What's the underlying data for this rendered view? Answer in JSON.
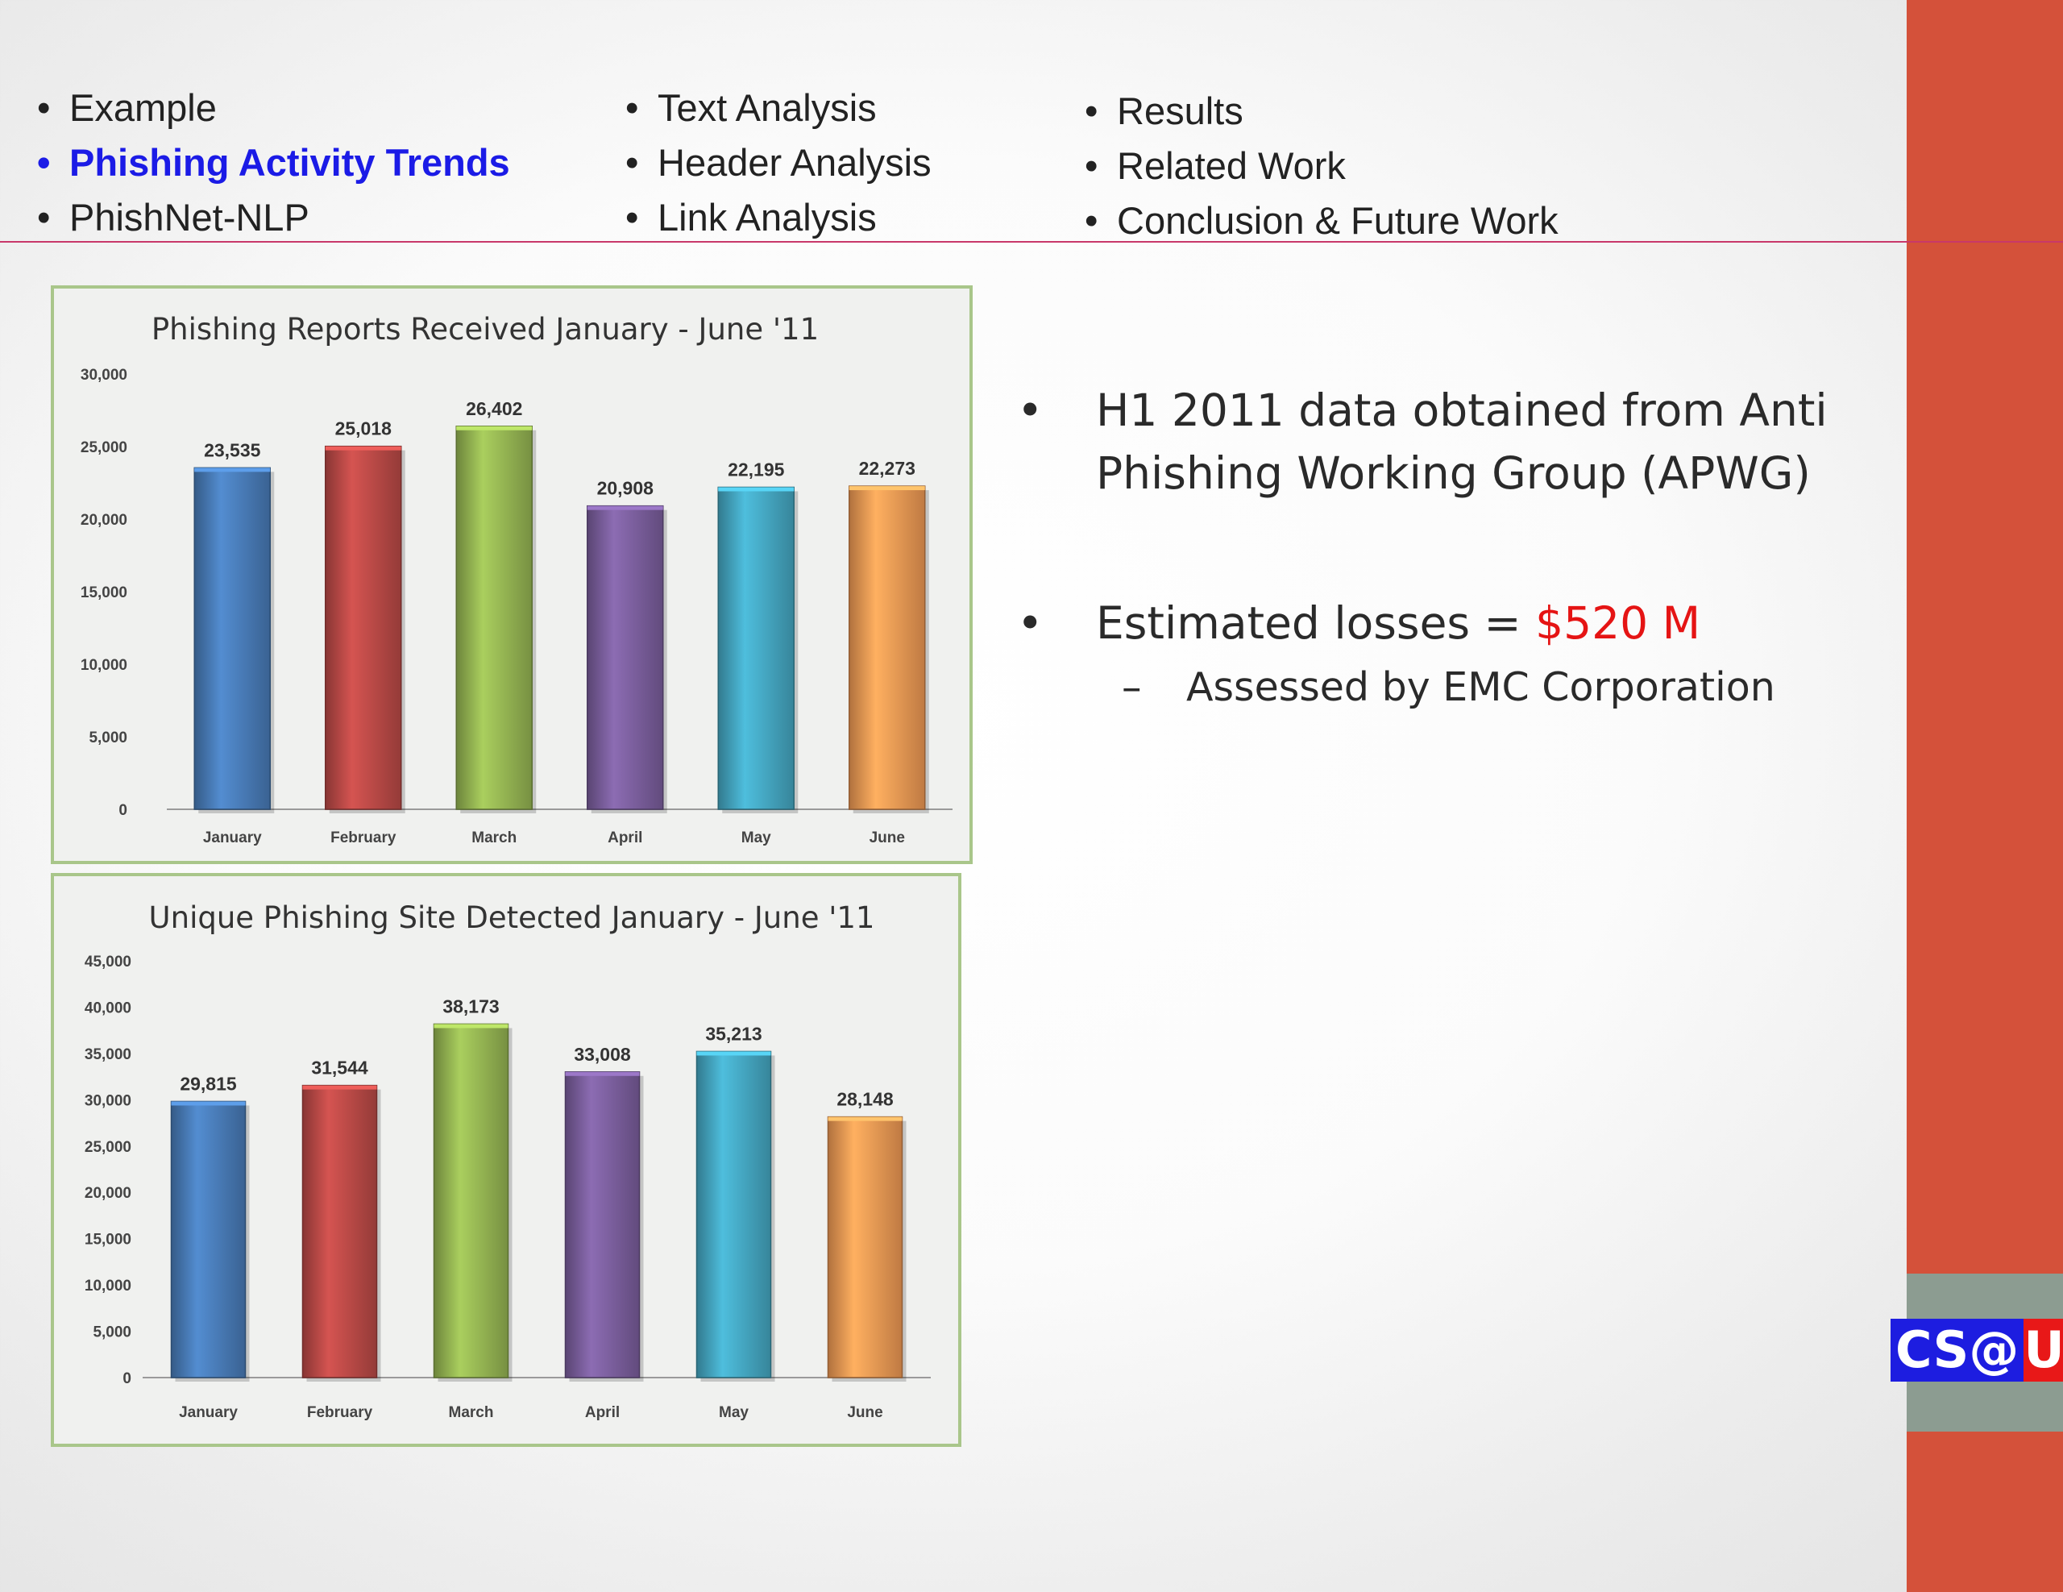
{
  "nav": {
    "col1": [
      {
        "label": "Example",
        "active": false
      },
      {
        "label": "Phishing Activity Trends",
        "active": true
      },
      {
        "label": "PhishNet-NLP",
        "active": false
      }
    ],
    "col2": [
      {
        "label": "Text Analysis"
      },
      {
        "label": "Header Analysis"
      },
      {
        "label": "Link Analysis"
      }
    ],
    "col3": [
      {
        "label": "Results"
      },
      {
        "label": "Related Work"
      },
      {
        "label": "Conclusion & Future Work"
      }
    ]
  },
  "bullets": {
    "item1": "H1 2011 data obtained from Anti Phishing Working Group (APWG)",
    "item2_prefix": "Estimated losses = ",
    "item2_value": "$520 M",
    "item2_sub": "Assessed by EMC Corporation"
  },
  "logo": {
    "cs": "CS",
    "at": "@",
    "uh": "UH"
  },
  "colors": {
    "side_bar": "#d4513a",
    "active_nav": "#1b1be6",
    "highlight": "#e51414"
  },
  "chart_data": [
    {
      "type": "bar",
      "title": "Phishing Reports Received January - June '11",
      "categories": [
        "January",
        "February",
        "March",
        "April",
        "May",
        "June"
      ],
      "values": [
        23535,
        25018,
        26402,
        20908,
        22195,
        22273
      ],
      "value_labels": [
        "23,535",
        "25,018",
        "26,402",
        "20,908",
        "22,195",
        "22,273"
      ],
      "ylim": [
        0,
        30000
      ],
      "yticks": [
        "0",
        "5,000",
        "10,000",
        "15,000",
        "20,000",
        "25,000",
        "30,000"
      ],
      "bar_colors": [
        "#4a7ebb",
        "#be4b48",
        "#98b954",
        "#7d60a0",
        "#46aac5",
        "#f59d56"
      ],
      "grid": false
    },
    {
      "type": "bar",
      "title": "Unique Phishing Site Detected January - June '11",
      "categories": [
        "January",
        "February",
        "March",
        "April",
        "May",
        "June"
      ],
      "values": [
        29815,
        31544,
        38173,
        33008,
        35213,
        28148
      ],
      "value_labels": [
        "29,815",
        "31,544",
        "38,173",
        "33,008",
        "35,213",
        "28,148"
      ],
      "ylim": [
        0,
        45000
      ],
      "yticks": [
        "0",
        "5,000",
        "10,000",
        "15,000",
        "20,000",
        "25,000",
        "30,000",
        "35,000",
        "40,000",
        "45,000"
      ],
      "bar_colors": [
        "#4a7ebb",
        "#be4b48",
        "#98b954",
        "#7d60a0",
        "#46aac5",
        "#f59d56"
      ],
      "grid": false
    }
  ]
}
